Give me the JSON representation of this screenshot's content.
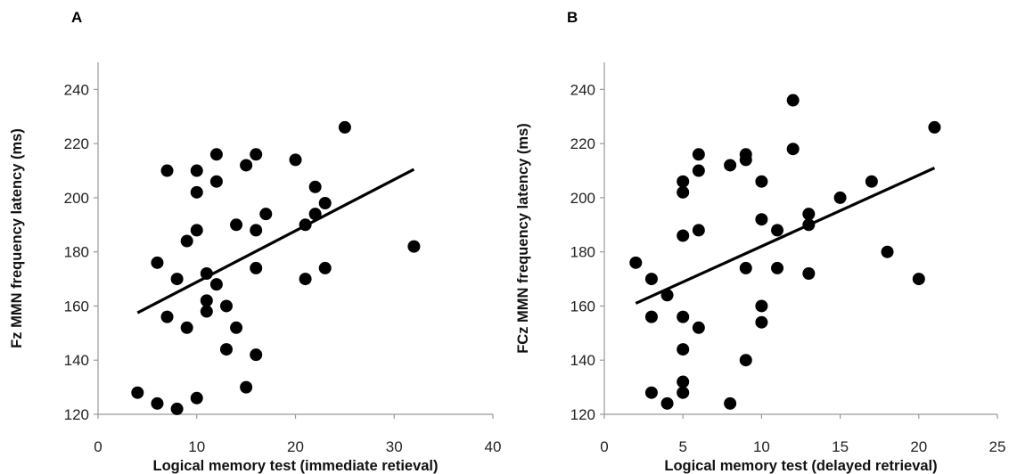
{
  "chart_data": [
    {
      "panel": "A",
      "type": "scatter",
      "xlabel": "Logical memory test (immediate retieval)",
      "ylabel": "Fz MMN frequency latency (ms)",
      "xlim": [
        0,
        40
      ],
      "ylim": [
        120,
        250
      ],
      "xticks": [
        0,
        10,
        20,
        30,
        40
      ],
      "yticks": [
        120,
        140,
        160,
        180,
        200,
        220,
        240
      ],
      "grid": false,
      "points": [
        {
          "x": 4,
          "y": 128
        },
        {
          "x": 6,
          "y": 124
        },
        {
          "x": 6,
          "y": 176
        },
        {
          "x": 7,
          "y": 210
        },
        {
          "x": 7,
          "y": 156
        },
        {
          "x": 8,
          "y": 122
        },
        {
          "x": 8,
          "y": 170
        },
        {
          "x": 9,
          "y": 152
        },
        {
          "x": 9,
          "y": 184
        },
        {
          "x": 10,
          "y": 210
        },
        {
          "x": 10,
          "y": 202
        },
        {
          "x": 10,
          "y": 188
        },
        {
          "x": 10,
          "y": 126
        },
        {
          "x": 11,
          "y": 172
        },
        {
          "x": 11,
          "y": 162
        },
        {
          "x": 11,
          "y": 158
        },
        {
          "x": 12,
          "y": 216
        },
        {
          "x": 12,
          "y": 206
        },
        {
          "x": 12,
          "y": 168
        },
        {
          "x": 13,
          "y": 160
        },
        {
          "x": 13,
          "y": 144
        },
        {
          "x": 14,
          "y": 190
        },
        {
          "x": 14,
          "y": 152
        },
        {
          "x": 15,
          "y": 212
        },
        {
          "x": 15,
          "y": 130
        },
        {
          "x": 16,
          "y": 216
        },
        {
          "x": 16,
          "y": 188
        },
        {
          "x": 16,
          "y": 174
        },
        {
          "x": 16,
          "y": 142
        },
        {
          "x": 17,
          "y": 194
        },
        {
          "x": 20,
          "y": 214
        },
        {
          "x": 21,
          "y": 190
        },
        {
          "x": 21,
          "y": 170
        },
        {
          "x": 22,
          "y": 204
        },
        {
          "x": 22,
          "y": 194
        },
        {
          "x": 23,
          "y": 198
        },
        {
          "x": 23,
          "y": 174
        },
        {
          "x": 25,
          "y": 226
        },
        {
          "x": 32,
          "y": 182
        }
      ],
      "trendline": [
        {
          "x": 4,
          "y": 157.5
        },
        {
          "x": 32,
          "y": 210.5
        }
      ]
    },
    {
      "panel": "B",
      "type": "scatter",
      "xlabel": "Logical memory test (delayed retrieval)",
      "ylabel": "FCz MMN frequency latency (ms)",
      "xlim": [
        0,
        25
      ],
      "ylim": [
        120,
        250
      ],
      "xticks": [
        0,
        5,
        10,
        15,
        20,
        25
      ],
      "yticks": [
        120,
        140,
        160,
        180,
        200,
        220,
        240
      ],
      "grid": false,
      "points": [
        {
          "x": 2,
          "y": 176
        },
        {
          "x": 3,
          "y": 170
        },
        {
          "x": 3,
          "y": 156
        },
        {
          "x": 3,
          "y": 128
        },
        {
          "x": 4,
          "y": 164
        },
        {
          "x": 4,
          "y": 124
        },
        {
          "x": 5,
          "y": 206
        },
        {
          "x": 5,
          "y": 202
        },
        {
          "x": 5,
          "y": 186
        },
        {
          "x": 5,
          "y": 156
        },
        {
          "x": 5,
          "y": 144
        },
        {
          "x": 5,
          "y": 132
        },
        {
          "x": 5,
          "y": 128
        },
        {
          "x": 6,
          "y": 216
        },
        {
          "x": 6,
          "y": 210
        },
        {
          "x": 6,
          "y": 188
        },
        {
          "x": 6,
          "y": 152
        },
        {
          "x": 8,
          "y": 212
        },
        {
          "x": 8,
          "y": 124
        },
        {
          "x": 9,
          "y": 216
        },
        {
          "x": 9,
          "y": 214
        },
        {
          "x": 9,
          "y": 174
        },
        {
          "x": 9,
          "y": 140
        },
        {
          "x": 10,
          "y": 206
        },
        {
          "x": 10,
          "y": 192
        },
        {
          "x": 10,
          "y": 160
        },
        {
          "x": 10,
          "y": 154
        },
        {
          "x": 11,
          "y": 188
        },
        {
          "x": 11,
          "y": 174
        },
        {
          "x": 12,
          "y": 236
        },
        {
          "x": 12,
          "y": 218
        },
        {
          "x": 13,
          "y": 194
        },
        {
          "x": 13,
          "y": 190
        },
        {
          "x": 13,
          "y": 172
        },
        {
          "x": 15,
          "y": 200
        },
        {
          "x": 17,
          "y": 206
        },
        {
          "x": 18,
          "y": 180
        },
        {
          "x": 20,
          "y": 170
        },
        {
          "x": 21,
          "y": 226
        }
      ],
      "trendline": [
        {
          "x": 2,
          "y": 161
        },
        {
          "x": 21,
          "y": 211
        }
      ]
    }
  ]
}
